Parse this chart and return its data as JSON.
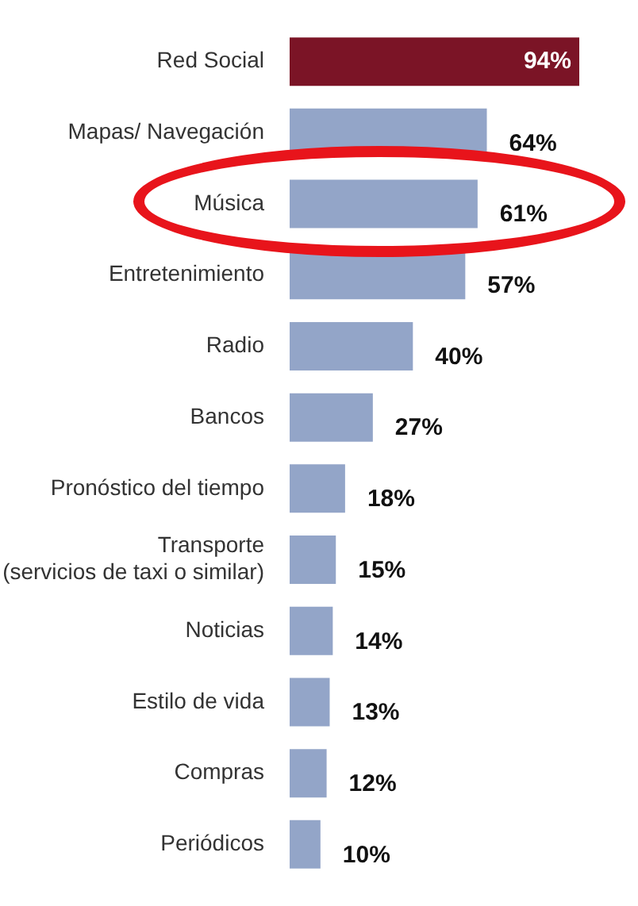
{
  "chart_data": {
    "type": "bar",
    "orientation": "horizontal",
    "categories": [
      "Red Social",
      "Mapas/ Navegación",
      "Música",
      "Entretenimiento",
      "Radio",
      "Bancos",
      "Pronóstico del tiempo",
      "Transporte\n(servicios de taxi o similar)",
      "Noticias",
      "Estilo de vida",
      "Compras",
      "Periódicos"
    ],
    "values": [
      94,
      64,
      61,
      57,
      40,
      27,
      18,
      15,
      14,
      13,
      12,
      10
    ],
    "colors": [
      "#7b1426",
      "#93a5c8",
      "#93a5c8",
      "#93a5c8",
      "#93a5c8",
      "#93a5c8",
      "#93a5c8",
      "#93a5c8",
      "#93a5c8",
      "#93a5c8",
      "#93a5c8",
      "#93a5c8"
    ],
    "value_labels": [
      "94%",
      "64%",
      "61%",
      "57%",
      "40%",
      "27%",
      "18%",
      "15%",
      "14%",
      "13%",
      "12%",
      "10%"
    ],
    "legend": false
  }
}
